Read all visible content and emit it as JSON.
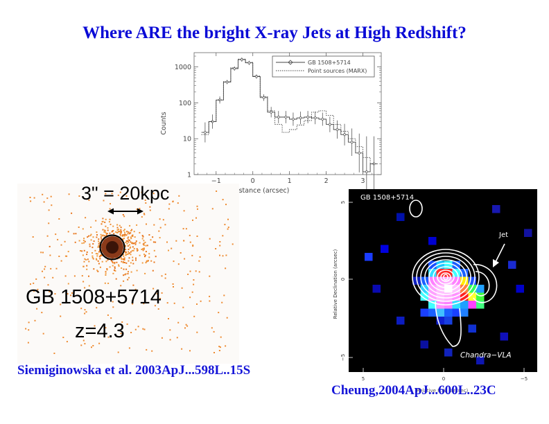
{
  "slide": {
    "title": "Where ARE the bright X-ray Jets at High Redshift?",
    "xray_image": {
      "scale_label": "3\" = 20kpc",
      "source_name": "GB 1508+5714",
      "redshift_label": "z=4.3",
      "reference": "Siemiginowska et al. 2003ApJ...598L..15S"
    },
    "radio_overlay": {
      "panel_label": "GB 1508+5714",
      "jet_label": "Jet",
      "instrument_label": "Chandra−VLA",
      "ylabel": "Relative Declination (arcsec)",
      "xlabel": "Relative R.A. (arcsec)",
      "yticks": [
        "5",
        "0",
        "−5"
      ],
      "xticks": [
        "5",
        "0",
        "−5"
      ],
      "reference": "Cheung,2004ApJ...600L..23C"
    }
  },
  "chart_data": {
    "type": "line",
    "title": "",
    "xlabel": "Distance (arcsec)",
    "ylabel": "Counts",
    "xlim": [
      -1.6,
      3.5
    ],
    "ylim": [
      1,
      2500
    ],
    "y_scale": "log",
    "xticks": [
      -1,
      0,
      1,
      2,
      3
    ],
    "xtick_labels": [
      "−1",
      "0",
      "1",
      "2",
      "3"
    ],
    "yticks": [
      1,
      10,
      100,
      1000
    ],
    "ytick_labels": [
      "1",
      "10",
      "100",
      "1000"
    ],
    "legend_position": "top-right",
    "series": [
      {
        "name": "GB 1508+5714",
        "style": "solid-step-with-points",
        "x": [
          -1.3,
          -1.1,
          -0.9,
          -0.7,
          -0.5,
          -0.3,
          -0.1,
          0.1,
          0.3,
          0.5,
          0.7,
          0.9,
          1.1,
          1.3,
          1.5,
          1.7,
          1.9,
          2.1,
          2.3,
          2.5,
          2.7,
          2.9,
          3.1,
          3.3
        ],
        "y": [
          15,
          30,
          120,
          380,
          900,
          1600,
          1300,
          540,
          140,
          55,
          40,
          40,
          35,
          38,
          40,
          38,
          35,
          25,
          18,
          13,
          8,
          4,
          1.2,
          2.0
        ]
      },
      {
        "name": "Point sources (MARX)",
        "style": "dotted-step",
        "x": [
          -1.3,
          -1.1,
          -0.9,
          -0.7,
          -0.5,
          -0.3,
          -0.1,
          0.1,
          0.3,
          0.5,
          0.7,
          0.9,
          1.1,
          1.3,
          1.5,
          1.7,
          1.9,
          2.1,
          2.3,
          2.5,
          2.7,
          2.9,
          3.1,
          3.3
        ],
        "y": [
          13,
          30,
          120,
          390,
          950,
          1650,
          1350,
          560,
          150,
          60,
          25,
          15,
          18,
          24,
          32,
          55,
          60,
          45,
          25,
          16,
          10,
          6,
          3,
          2
        ]
      }
    ]
  }
}
